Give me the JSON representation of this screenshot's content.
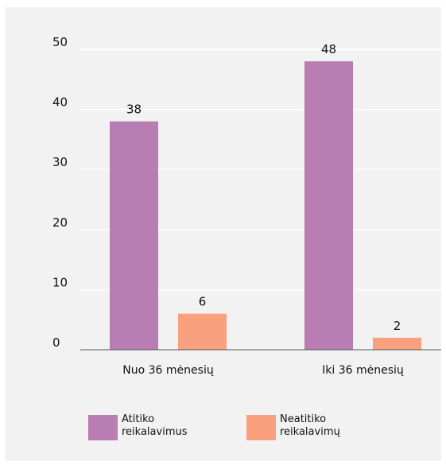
{
  "colors": {
    "background": "#f2f2f2",
    "gridline": "#ffffff",
    "axis": "#555555",
    "series_1": "#b87db3",
    "series_2": "#f9a07f"
  },
  "chart_data": {
    "type": "bar",
    "title": "",
    "xlabel": "",
    "ylabel": "",
    "categories": [
      "Nuo 36 mėnesių",
      "Iki 36 mėnesių"
    ],
    "series": [
      {
        "name": "Atitiko reikalavimus",
        "values": [
          38,
          48
        ]
      },
      {
        "name": "Neatitiko reikalavimų",
        "values": [
          6,
          2
        ]
      }
    ],
    "ylim": [
      0,
      50
    ],
    "yticks": [
      "0",
      "10",
      "20",
      "30",
      "40",
      "50"
    ],
    "grid": true,
    "data_labels": true,
    "legend_position": "bottom"
  }
}
